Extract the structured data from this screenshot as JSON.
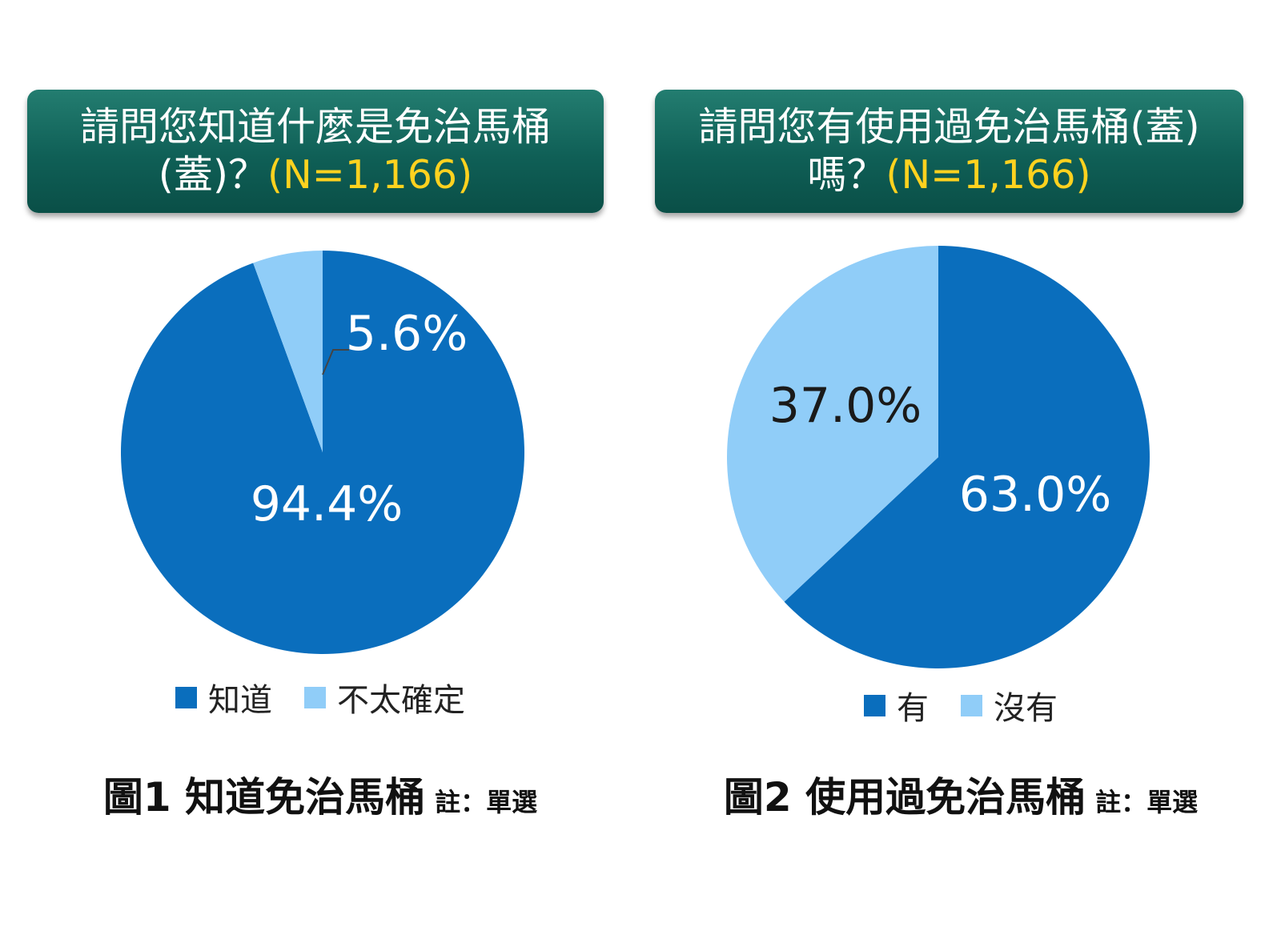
{
  "colors": {
    "primary": "#0a6ebd",
    "secondary": "#90cdf8",
    "header_bg": "#0f5f56",
    "highlight": "#ffd21f"
  },
  "panels": [
    {
      "question_line1": "請問您知道什麼是免治馬桶",
      "question_line2": "(蓋)？",
      "sample": "(N=1,166)",
      "caption_title": "圖1 知道免治馬桶",
      "caption_note": "註：單選"
    },
    {
      "question_line1": "請問您有使用過免治馬桶(蓋)",
      "question_line2": "嗎？",
      "sample": "(N=1,166)",
      "caption_title": "圖2 使用過免治馬桶",
      "caption_note": "註：單選"
    }
  ],
  "chart_data": [
    {
      "type": "pie",
      "title": "請問您知道什麼是免治馬桶(蓋)？(N=1,166)",
      "categories": [
        "知道",
        "不太確定"
      ],
      "values": [
        94.4,
        5.6
      ],
      "labels": [
        "94.4%",
        "5.6%"
      ],
      "colors": [
        "#0a6ebd",
        "#90cdf8"
      ],
      "legend_position": "bottom"
    },
    {
      "type": "pie",
      "title": "請問您有使用過免治馬桶(蓋)嗎？(N=1,166)",
      "categories": [
        "有",
        "沒有"
      ],
      "values": [
        63.0,
        37.0
      ],
      "labels": [
        "63.0%",
        "37.0%"
      ],
      "colors": [
        "#0a6ebd",
        "#90cdf8"
      ],
      "legend_position": "bottom"
    }
  ]
}
